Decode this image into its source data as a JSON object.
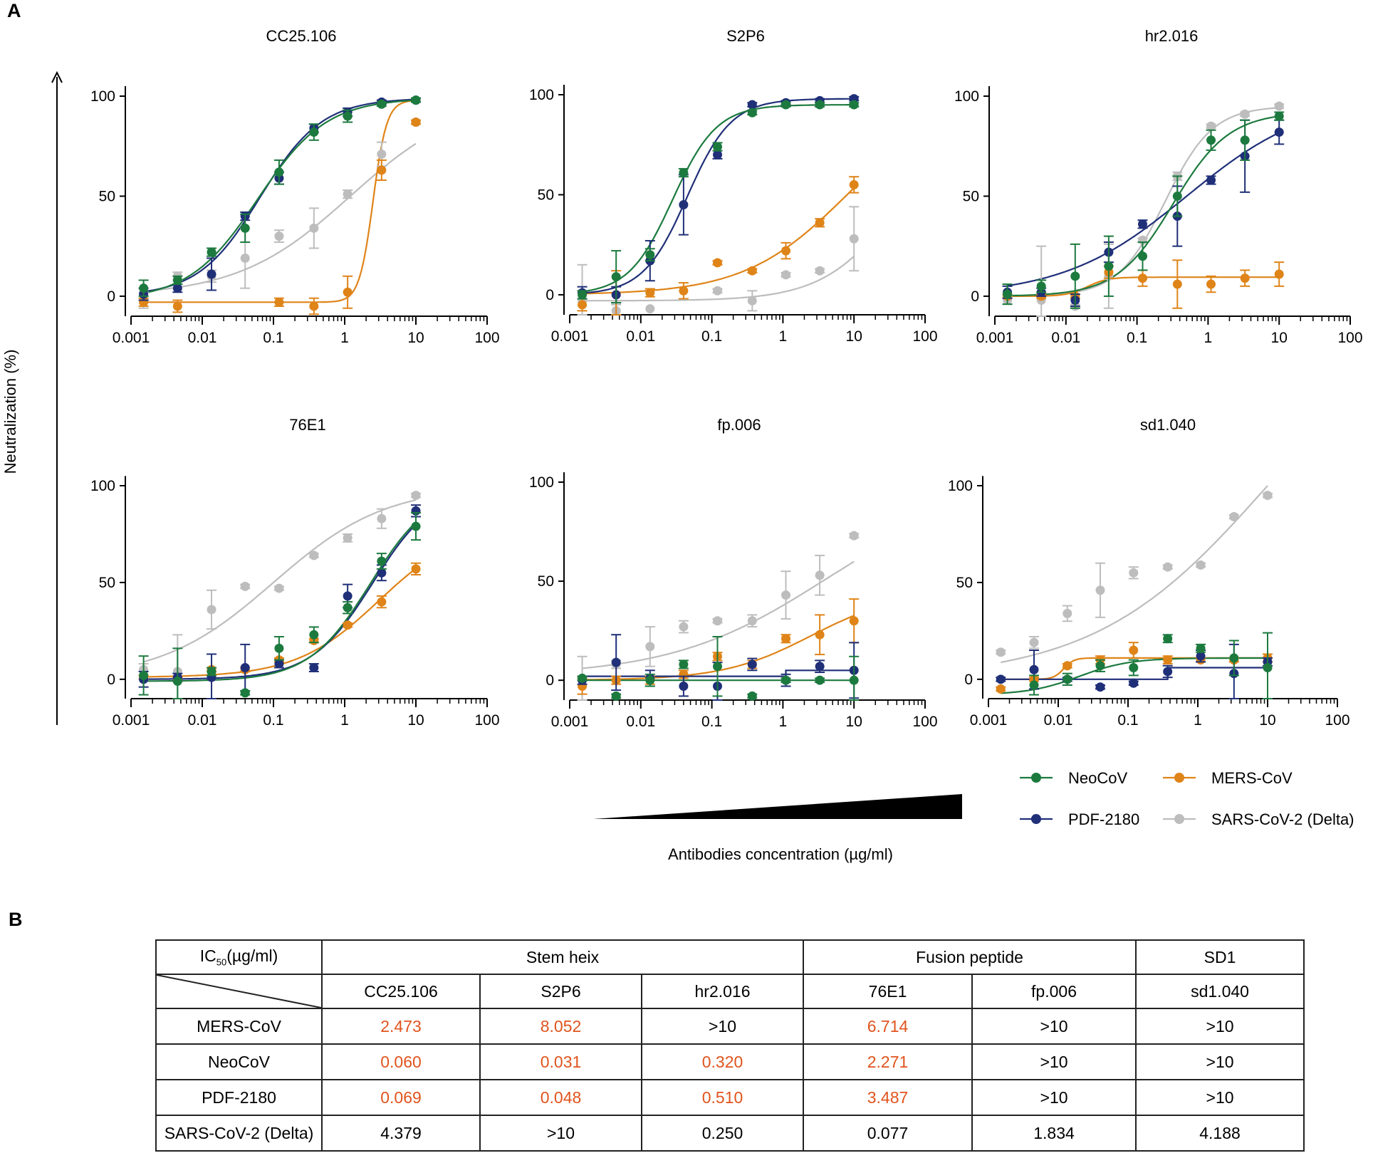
{
  "panel_labels": {
    "a": "A",
    "b": "B"
  },
  "colors": {
    "NeoCoV": "#1c7a3e",
    "PDF-2180": "#1f2f78",
    "MERS-CoV": "#df8418",
    "SARS-CoV-2 (Delta)": "#bdbdbd",
    "highlight": "#e0541d"
  },
  "axis_shared": {
    "ylabel": "Neutralization (%)",
    "xlabel": "Antibodies concentration (µg/ml)",
    "x_scale": "log10",
    "xlim": [
      0.001,
      100
    ],
    "ylim": [
      -10,
      105
    ],
    "x_ticks": [
      0.001,
      0.01,
      0.1,
      1,
      10,
      100
    ],
    "x_tick_labels": [
      "0.001",
      "0.01",
      "0.1",
      "1",
      "10",
      "100"
    ],
    "y_ticks": [
      0,
      50,
      100
    ],
    "y_tick_labels": [
      "0",
      "50",
      "100"
    ]
  },
  "legend": {
    "position": "bottom-right",
    "entries": [
      "NeoCoV",
      "MERS-CoV",
      "PDF-2180",
      "SARS-CoV-2 (Delta)"
    ]
  },
  "chart_data": [
    {
      "type": "scatter",
      "title": "CC25.106",
      "x": [
        0.0015,
        0.0045,
        0.0135,
        0.04,
        0.12,
        0.37,
        1.1,
        3.3,
        10
      ],
      "series": [
        {
          "name": "NeoCoV",
          "values": [
            4,
            8,
            22,
            34,
            62,
            82,
            90,
            96,
            98
          ],
          "err": [
            4,
            2,
            2,
            7,
            6,
            4,
            3,
            1,
            1
          ]
        },
        {
          "name": "PDF-2180",
          "values": [
            1,
            4,
            11,
            40,
            59,
            84,
            92,
            97,
            98
          ],
          "err": [
            3,
            2,
            8,
            2,
            3,
            2,
            2,
            1,
            1
          ]
        },
        {
          "name": "MERS-CoV",
          "values": [
            -3,
            -5,
            null,
            null,
            -3,
            -5,
            2,
            63,
            87
          ],
          "err": [
            2,
            3,
            0,
            0,
            2,
            4,
            8,
            5,
            1
          ]
        },
        {
          "name": "SARS-CoV-2 (Delta)",
          "values": [
            -2,
            10,
            10,
            19,
            30,
            34,
            51,
            71,
            87
          ],
          "err": [
            4,
            2,
            3,
            15,
            3,
            10,
            2,
            6,
            1
          ]
        }
      ],
      "fits": [
        {
          "name": "NeoCoV",
          "type": "sigmoid",
          "bottom": -2,
          "top": 99,
          "ec50": 0.06,
          "hill": 0.9
        },
        {
          "name": "PDF-2180",
          "type": "sigmoid",
          "bottom": 0,
          "top": 99,
          "ec50": 0.065,
          "hill": 1.0
        },
        {
          "name": "MERS-CoV",
          "type": "sigmoid",
          "bottom": -3,
          "top": 98,
          "ec50": 2.5,
          "hill": 4.5
        },
        {
          "name": "SARS-CoV-2 (Delta)",
          "type": "sigmoid",
          "bottom": 0,
          "top": 100,
          "ec50": 1.2,
          "hill": 0.55
        }
      ]
    },
    {
      "type": "scatter",
      "title": "S2P6",
      "x": [
        0.0015,
        0.0045,
        0.0135,
        0.04,
        0.12,
        0.37,
        1.1,
        3.3,
        10
      ],
      "series": [
        {
          "name": "NeoCoV",
          "values": [
            0,
            9,
            20,
            61,
            74,
            91,
            95,
            95,
            95
          ],
          "err": [
            2,
            13,
            3,
            2,
            2,
            1,
            1,
            1,
            1
          ]
        },
        {
          "name": "PDF-2180",
          "values": [
            1,
            0,
            17,
            45,
            70,
            95,
            96,
            97,
            98
          ],
          "err": [
            3,
            4,
            10,
            15,
            2,
            1,
            1,
            1,
            1
          ]
        },
        {
          "name": "MERS-CoV",
          "values": [
            -5,
            0,
            1,
            2,
            16,
            12,
            22,
            36,
            55
          ],
          "err": [
            3,
            12,
            2,
            4,
            1,
            1,
            4,
            2,
            4
          ]
        },
        {
          "name": "SARS-CoV-2 (Delta)",
          "values": [
            -3,
            -8,
            -7,
            null,
            2,
            -3,
            10,
            12,
            28
          ],
          "err": [
            18,
            3,
            0,
            0,
            1,
            5,
            1,
            1,
            16
          ]
        }
      ],
      "fits": [
        {
          "name": "NeoCoV",
          "type": "sigmoid",
          "bottom": 0,
          "top": 95,
          "ec50": 0.028,
          "hill": 1.4
        },
        {
          "name": "PDF-2180",
          "type": "sigmoid",
          "bottom": 0,
          "top": 98,
          "ec50": 0.045,
          "hill": 1.4
        },
        {
          "name": "MERS-CoV",
          "type": "sigmoid",
          "bottom": 0,
          "top": 100,
          "ec50": 8.0,
          "hill": 0.6
        },
        {
          "name": "SARS-CoV-2 (Delta)",
          "type": "sigmoid",
          "bottom": -3,
          "top": 100,
          "ec50": 50,
          "hill": 0.8
        }
      ]
    },
    {
      "type": "scatter",
      "title": "hr2.016",
      "x": [
        0.0015,
        0.0045,
        0.0135,
        0.04,
        0.12,
        0.37,
        1.1,
        3.3,
        10
      ],
      "series": [
        {
          "name": "NeoCoV",
          "values": [
            1,
            5,
            10,
            15,
            20,
            50,
            78,
            78,
            90
          ],
          "err": [
            5,
            3,
            16,
            15,
            7,
            10,
            5,
            10,
            2
          ]
        },
        {
          "name": "PDF-2180",
          "values": [
            2,
            2,
            -2,
            22,
            36,
            40,
            58,
            70,
            82
          ],
          "err": [
            3,
            2,
            3,
            5,
            2,
            15,
            2,
            18,
            6
          ]
        },
        {
          "name": "MERS-CoV",
          "values": [
            0,
            0,
            0,
            12,
            9,
            6,
            6,
            9,
            11
          ],
          "err": [
            1,
            1,
            1,
            3,
            4,
            12,
            4,
            4,
            6
          ]
        },
        {
          "name": "SARS-CoV-2 (Delta)",
          "values": [
            -2,
            -2,
            -5,
            10,
            28,
            60,
            85,
            91,
            95
          ],
          "err": [
            2,
            27,
            1,
            16,
            1,
            2,
            1,
            1,
            1
          ]
        }
      ],
      "fits": [
        {
          "name": "NeoCoV",
          "type": "sigmoid",
          "bottom": 0,
          "top": 92,
          "ec50": 0.32,
          "hill": 1.1
        },
        {
          "name": "PDF-2180",
          "type": "sigmoid",
          "bottom": 0,
          "top": 100,
          "ec50": 0.5,
          "hill": 0.5
        },
        {
          "name": "MERS-CoV",
          "type": "sigmoid",
          "bottom": 0,
          "top": 9.5,
          "ec50": 0.02,
          "hill": 3.0
        },
        {
          "name": "SARS-CoV-2 (Delta)",
          "type": "sigmoid",
          "bottom": 0,
          "top": 95,
          "ec50": 0.25,
          "hill": 1.3
        }
      ]
    },
    {
      "type": "scatter",
      "title": "76E1",
      "x": [
        0.0015,
        0.0045,
        0.0135,
        0.04,
        0.12,
        0.37,
        1.1,
        3.3,
        10
      ],
      "series": [
        {
          "name": "NeoCoV",
          "values": [
            2,
            -1,
            4,
            -7,
            16,
            23,
            37,
            61,
            79
          ],
          "err": [
            10,
            17,
            2,
            1,
            6,
            4,
            3,
            4,
            7
          ]
        },
        {
          "name": "PDF-2180",
          "values": [
            0,
            1,
            1,
            6,
            8,
            6,
            43,
            55,
            87
          ],
          "err": [
            4,
            2,
            12,
            12,
            2,
            2,
            6,
            4,
            3
          ]
        },
        {
          "name": "MERS-CoV",
          "values": [
            1,
            0,
            5,
            5,
            10,
            20,
            28,
            40,
            57
          ],
          "err": [
            1,
            1,
            1,
            1,
            1,
            1,
            1,
            3,
            3
          ]
        },
        {
          "name": "SARS-CoV-2 (Delta)",
          "values": [
            5,
            4,
            36,
            48,
            47,
            64,
            73,
            83,
            95
          ],
          "err": [
            3,
            19,
            10,
            1,
            1,
            1,
            2,
            5,
            1
          ]
        }
      ],
      "fits": [
        {
          "name": "NeoCoV",
          "type": "sigmoid",
          "bottom": -1,
          "top": 100,
          "ec50": 2.3,
          "hill": 1.0
        },
        {
          "name": "PDF-2180",
          "type": "sigmoid",
          "bottom": 0,
          "top": 100,
          "ec50": 2.5,
          "hill": 1.0
        },
        {
          "name": "MERS-CoV",
          "type": "sigmoid",
          "bottom": 1,
          "top": 80,
          "ec50": 3.0,
          "hill": 0.75
        },
        {
          "name": "SARS-CoV-2 (Delta)",
          "type": "sigmoid",
          "bottom": 0,
          "top": 100,
          "ec50": 0.1,
          "hill": 0.55
        }
      ]
    },
    {
      "type": "scatter",
      "title": "fp.006",
      "x": [
        0.0015,
        0.0045,
        0.0135,
        0.04,
        0.12,
        0.37,
        1.1,
        3.3,
        10
      ],
      "series": [
        {
          "name": "NeoCoV",
          "values": [
            1,
            -8,
            0,
            8,
            7,
            -8,
            0,
            0,
            0
          ],
          "err": [
            1,
            1,
            3,
            2,
            15,
            1,
            1,
            1,
            12
          ]
        },
        {
          "name": "PDF-2180",
          "values": [
            0,
            9,
            1,
            -3,
            -3,
            8,
            0,
            7,
            5
          ],
          "err": [
            2,
            14,
            4,
            5,
            12,
            3,
            3,
            3,
            14
          ]
        },
        {
          "name": "MERS-CoV",
          "values": [
            -3,
            0,
            0,
            3,
            12,
            8,
            21,
            23,
            30
          ],
          "err": [
            4,
            2,
            2,
            2,
            2,
            2,
            2,
            10,
            11
          ]
        },
        {
          "name": "SARS-CoV-2 (Delta)",
          "values": [
            1,
            8,
            17,
            27,
            30,
            30,
            43,
            53,
            73
          ],
          "err": [
            11,
            2,
            10,
            3,
            1,
            3,
            12,
            10,
            1
          ]
        }
      ],
      "fits": [
        {
          "name": "NeoCoV",
          "type": "flat",
          "value": 0
        },
        {
          "name": "PDF-2180",
          "type": "step",
          "points": [
            [
              0.0015,
              2
            ],
            [
              1.1,
              2
            ],
            [
              1.1,
              5
            ],
            [
              10,
              5
            ]
          ]
        },
        {
          "name": "MERS-CoV",
          "type": "sigmoid",
          "bottom": 0,
          "top": 45,
          "ec50": 2.5,
          "hill": 0.7
        },
        {
          "name": "SARS-CoV-2 (Delta)",
          "type": "sigmoid",
          "bottom": 2,
          "top": 100,
          "ec50": 4.0,
          "hill": 0.4
        }
      ]
    },
    {
      "type": "scatter",
      "title": "sd1.040",
      "x": [
        0.0015,
        0.0045,
        0.0135,
        0.04,
        0.12,
        0.37,
        1.1,
        3.3,
        10
      ],
      "series": [
        {
          "name": "NeoCoV",
          "values": [
            null,
            -3,
            0,
            7,
            6,
            21,
            16,
            11,
            6
          ],
          "err": [
            0,
            5,
            3,
            3,
            4,
            2,
            2,
            9,
            18
          ]
        },
        {
          "name": "PDF-2180",
          "values": [
            0,
            5,
            0,
            -4,
            -2,
            4,
            12,
            3,
            9
          ],
          "err": [
            1,
            10,
            1,
            1,
            1,
            3,
            3,
            15,
            2
          ]
        },
        {
          "name": "MERS-CoV",
          "values": [
            -5,
            0,
            7,
            10,
            15,
            10,
            10,
            10,
            11
          ],
          "err": [
            1,
            1,
            1,
            2,
            4,
            2,
            1,
            1,
            2
          ]
        },
        {
          "name": "SARS-CoV-2 (Delta)",
          "values": [
            14,
            19,
            34,
            46,
            55,
            58,
            59,
            84,
            95
          ],
          "err": [
            1,
            3,
            4,
            14,
            3,
            1,
            1,
            1,
            1
          ]
        }
      ],
      "fits": [
        {
          "name": "NeoCoV",
          "type": "sigmoid",
          "bottom": -8,
          "top": 11,
          "ec50": 0.02,
          "hill": 1.2
        },
        {
          "name": "PDF-2180",
          "type": "step",
          "points": [
            [
              0.0015,
              0
            ],
            [
              0.37,
              0
            ],
            [
              0.37,
              6
            ],
            [
              10,
              6
            ]
          ]
        },
        {
          "name": "MERS-CoV",
          "type": "sigmoid",
          "bottom": 0,
          "top": 11,
          "ec50": 0.012,
          "hill": 6.0
        },
        {
          "name": "SARS-CoV-2 (Delta)",
          "type": "sigmoid",
          "bottom": 0,
          "top": 200,
          "ec50": 10,
          "hill": 0.35
        }
      ]
    }
  ],
  "table": {
    "corner_label": "IC",
    "corner_sub": "50",
    "corner_unit": "(µg/ml)",
    "groups": [
      {
        "label": "Stem heix",
        "span": 3
      },
      {
        "label": "Fusion peptide",
        "span": 2
      },
      {
        "label": "SD1",
        "span": 1
      }
    ],
    "columns": [
      "CC25.106",
      "S2P6",
      "hr2.016",
      "76E1",
      "fp.006",
      "sd1.040"
    ],
    "rows": [
      {
        "label": "MERS-CoV",
        "values": [
          "2.473",
          "8.052",
          ">10",
          "6.714",
          ">10",
          ">10"
        ],
        "highlight": [
          true,
          true,
          false,
          true,
          false,
          false
        ]
      },
      {
        "label": "NeoCoV",
        "values": [
          "0.060",
          "0.031",
          "0.320",
          "2.271",
          ">10",
          ">10"
        ],
        "highlight": [
          true,
          true,
          true,
          true,
          false,
          false
        ]
      },
      {
        "label": "PDF-2180",
        "values": [
          "0.069",
          "0.048",
          "0.510",
          "3.487",
          ">10",
          ">10"
        ],
        "highlight": [
          true,
          true,
          true,
          true,
          false,
          false
        ]
      },
      {
        "label": "SARS-CoV-2 (Delta)",
        "values": [
          "4.379",
          ">10",
          "0.250",
          "0.077",
          "1.834",
          "4.188"
        ],
        "highlight": [
          false,
          false,
          false,
          false,
          false,
          false
        ]
      }
    ]
  }
}
